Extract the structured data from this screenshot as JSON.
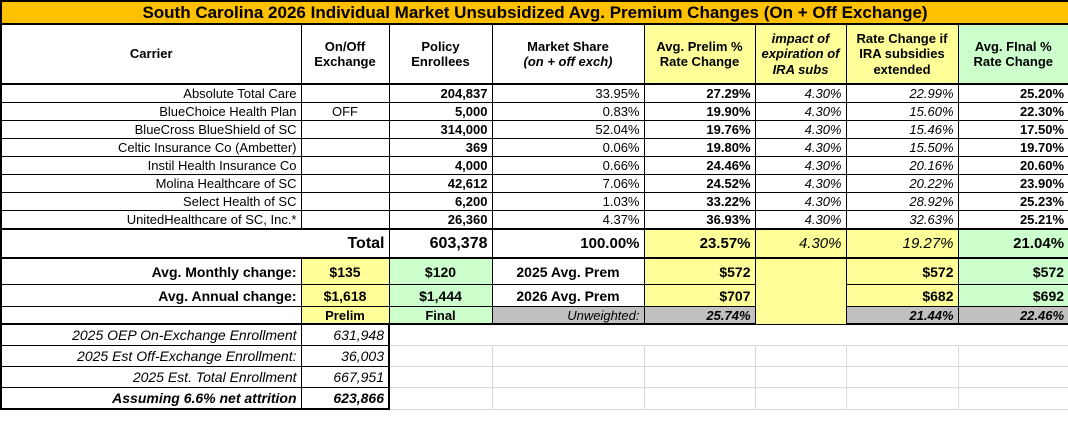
{
  "title": "South Carolina 2026 Individual Market Unsubsidized Avg. Premium Changes (On + Off Exchange)",
  "colors": {
    "title_bg": "#FFC000",
    "yellow_cell": "#FFFF99",
    "green_cell": "#CCFFCC",
    "cyan_highlight": "#00FFFF",
    "gray_cell": "#C0C0C0",
    "border": "#000000"
  },
  "columns": [
    {
      "label": "Carrier"
    },
    {
      "label": "On/Off Exchange"
    },
    {
      "label": "Policy Enrollees"
    },
    {
      "label": "Market Share",
      "sub": "(on + off exch)"
    },
    {
      "label": "Avg. Prelim % Rate Change"
    },
    {
      "label": "impact of expiration of IRA subs"
    },
    {
      "label": "Rate Change if IRA subsidies extended"
    },
    {
      "label": "Avg. FInal % Rate Change"
    }
  ],
  "carriers": [
    {
      "name": "Absolute Total Care",
      "exchange": "",
      "enrollees": "204,837",
      "market_share": "33.95%",
      "prelim_change": "27.29%",
      "ira_expiration_impact": "4.30%",
      "change_if_extended": "22.99%",
      "final_change": "25.20%",
      "highlight": false
    },
    {
      "name": "BlueChoice Health Plan",
      "exchange": "OFF",
      "enrollees": "5,000",
      "market_share": "0.83%",
      "prelim_change": "19.90%",
      "ira_expiration_impact": "4.30%",
      "change_if_extended": "15.60%",
      "final_change": "22.30%",
      "highlight": false
    },
    {
      "name": "BlueCross BlueShield of SC",
      "exchange": "",
      "enrollees": "314,000",
      "market_share": "52.04%",
      "prelim_change": "19.76%",
      "ira_expiration_impact": "4.30%",
      "change_if_extended": "15.46%",
      "final_change": "17.50%",
      "highlight": false
    },
    {
      "name": "Celtic Insurance Co (Ambetter)",
      "exchange": "",
      "enrollees": "369",
      "market_share": "0.06%",
      "prelim_change": "19.80%",
      "ira_expiration_impact": "4.30%",
      "change_if_extended": "15.50%",
      "final_change": "19.70%",
      "highlight": false
    },
    {
      "name": "Instil Health Insurance Co",
      "exchange": "",
      "enrollees": "4,000",
      "market_share": "0.66%",
      "prelim_change": "24.46%",
      "ira_expiration_impact": "4.30%",
      "change_if_extended": "20.16%",
      "final_change": "20.60%",
      "highlight": false
    },
    {
      "name": "Molina Healthcare of SC",
      "exchange": "",
      "enrollees": "42,612",
      "market_share": "7.06%",
      "prelim_change": "24.52%",
      "ira_expiration_impact": "4.30%",
      "change_if_extended": "20.22%",
      "final_change": "23.90%",
      "highlight": false
    },
    {
      "name": "Select Health of SC",
      "exchange": "",
      "enrollees": "6,200",
      "market_share": "1.03%",
      "prelim_change": "33.22%",
      "ira_expiration_impact": "4.30%",
      "change_if_extended": "28.92%",
      "final_change": "25.23%",
      "highlight": false
    },
    {
      "name": "UnitedHealthcare of SC, Inc.*",
      "exchange": "",
      "enrollees": "26,360",
      "market_share": "4.37%",
      "prelim_change": "36.93%",
      "ira_expiration_impact": "4.30%",
      "change_if_extended": "32.63%",
      "final_change": "25.21%",
      "highlight": true
    }
  ],
  "total": {
    "label": "Total",
    "enrollees": "603,378",
    "market_share": "100.00%",
    "prelim_change": "23.57%",
    "ira_expiration_impact": "4.30%",
    "change_if_extended": "19.27%",
    "final_change": "21.04%"
  },
  "summary": {
    "monthly": {
      "label": "Avg. Monthly change:",
      "prelim_amount": "$135",
      "final_amount": "$120",
      "premium_label": "2025 Avg. Prem",
      "prelim_premium": "$572",
      "extended_premium": "$572",
      "final_premium": "$572"
    },
    "annual": {
      "label": "Avg. Annual change:",
      "prelim_amount": "$1,618",
      "final_amount": "$1,444",
      "premium_label": "2026 Avg. Prem",
      "prelim_premium": "$707",
      "extended_premium": "$682",
      "final_premium": "$692"
    },
    "footer": {
      "prelim_tag": "Prelim",
      "final_tag": "Final",
      "unweighted_label": "Unweighted:",
      "prelim_pct": "25.74%",
      "extended_pct": "21.44%",
      "final_pct": "22.46%"
    }
  },
  "enrollment_notes": [
    {
      "label": "2025 OEP On-Exchange Enrollment",
      "value": "631,948"
    },
    {
      "label": "2025 Est Off-Exchange Enrollment:",
      "value": "36,003"
    },
    {
      "label": "2025 Est. Total Enrollment",
      "value": "667,951"
    },
    {
      "label": "Assuming 6.6% net attrition",
      "value": "623,866"
    }
  ]
}
